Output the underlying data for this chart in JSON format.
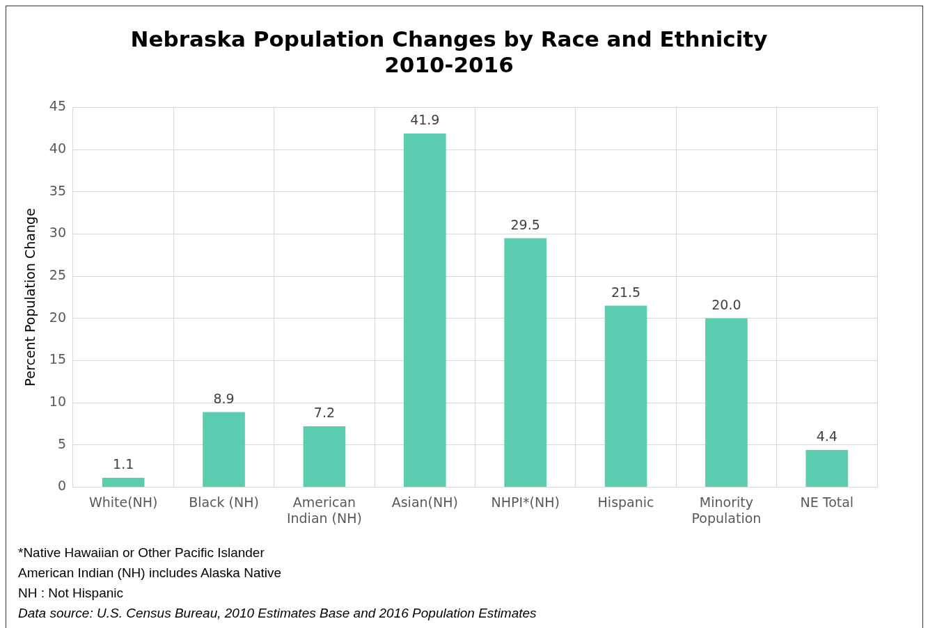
{
  "chart_data": {
    "type": "bar",
    "title": "Nebraska Population Changes by Race and Ethnicity\n2010-2016",
    "ylabel": "Percent Population Change",
    "categories": [
      "White(NH)",
      "Black (NH)",
      "American Indian (NH)",
      "Asian(NH)",
      "NHPI*(NH)",
      "Hispanic",
      "Minority Population",
      "NE Total"
    ],
    "values": [
      1.1,
      8.9,
      7.2,
      41.9,
      29.5,
      21.5,
      20.0,
      4.4
    ],
    "color": "#5dcdb0",
    "ylim": [
      0,
      45
    ],
    "yticks": [
      0,
      5,
      10,
      15,
      20,
      25,
      30,
      35,
      40,
      45
    ],
    "grid": true,
    "value_labels": [
      "1.1",
      "8.9",
      "7.2",
      "41.9",
      "29.5",
      "21.5",
      "20.0",
      "4.4"
    ],
    "annotations": [
      "*Native Hawaiian or Other Pacific Islander",
      "American Indian (NH) includes Alaska Native",
      "NH : Not Hispanic",
      "Data source: U.S. Census Bureau, 2010 Estimates Base and 2016 Population Estimates"
    ]
  }
}
